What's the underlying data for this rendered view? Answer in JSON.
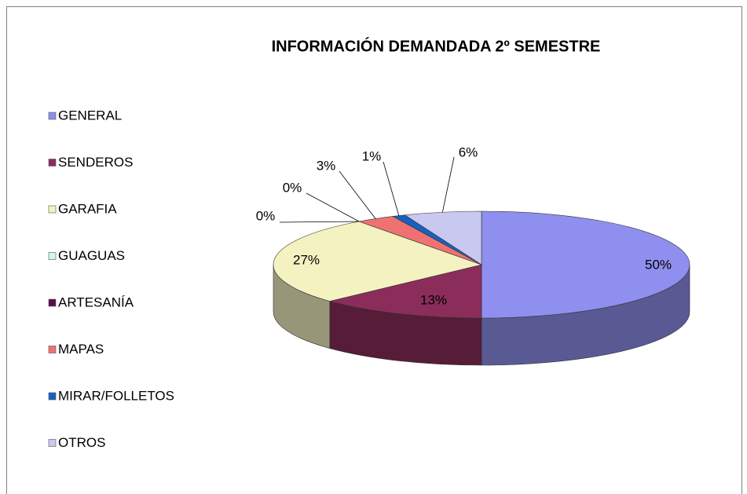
{
  "chart_data": {
    "type": "pie",
    "title": "INFORMACIÓN  DEMANDADA 2º SEMESTRE",
    "categories": [
      "GENERAL",
      "SENDEROS",
      "GARAFIA",
      "GUAGUAS",
      "ARTESANÍA",
      "MAPAS",
      "MIRAR/FOLLETOS",
      "OTROS"
    ],
    "values": [
      50,
      13,
      27,
      0,
      0,
      3,
      1,
      6
    ],
    "value_labels": [
      "50%",
      "13%",
      "27%",
      "0%",
      "0%",
      "3%",
      "1%",
      "6%"
    ],
    "colors": [
      "#8f8fef",
      "#8b2d5a",
      "#f5f2c2",
      "#d2f5f5",
      "#5e0c4c",
      "#ef7272",
      "#1562c2",
      "#c8c8f0"
    ],
    "legend": "left"
  }
}
